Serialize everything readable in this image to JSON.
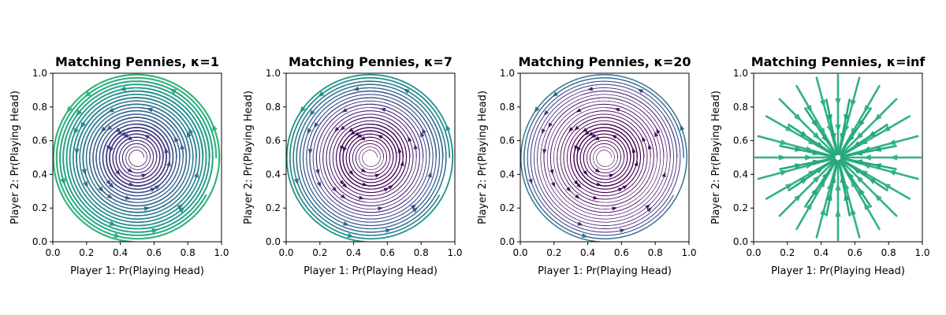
{
  "chart_data": [
    {
      "type": "streamplot",
      "title": "Matching Pennies, κ=1",
      "kappa": 1,
      "xlabel": "Player 1: Pr(Playing Head)",
      "ylabel": "Player 2: Pr(Playing Head)",
      "xlim": [
        0.0,
        1.0
      ],
      "ylim": [
        0.0,
        1.0
      ],
      "xticks": [
        "0.0",
        "0.2",
        "0.4",
        "0.6",
        "0.8",
        "1.0"
      ],
      "yticks": [
        "0.0",
        "0.2",
        "0.4",
        "0.6",
        "0.8",
        "1.0"
      ],
      "flow": "rotation",
      "center": [
        0.5,
        0.5
      ],
      "colormap": "viridis"
    },
    {
      "type": "streamplot",
      "title": "Matching Pennies, κ=7",
      "kappa": 7,
      "xlabel": "Player 1: Pr(Playing Head)",
      "ylabel": "Player 2: Pr(Playing Head)",
      "xlim": [
        0.0,
        1.0
      ],
      "ylim": [
        0.0,
        1.0
      ],
      "xticks": [
        "0.0",
        "0.2",
        "0.4",
        "0.6",
        "0.8",
        "1.0"
      ],
      "yticks": [
        "0.0",
        "0.2",
        "0.4",
        "0.6",
        "0.8",
        "1.0"
      ],
      "flow": "rotation",
      "center": [
        0.5,
        0.5
      ],
      "colormap": "viridis"
    },
    {
      "type": "streamplot",
      "title": "Matching Pennies, κ=20",
      "kappa": 20,
      "xlabel": "Player 1: Pr(Playing Head)",
      "ylabel": "Player 2: Pr(Playing Head)",
      "xlim": [
        0.0,
        1.0
      ],
      "ylim": [
        0.0,
        1.0
      ],
      "xticks": [
        "0.0",
        "0.2",
        "0.4",
        "0.6",
        "0.8",
        "1.0"
      ],
      "yticks": [
        "0.0",
        "0.2",
        "0.4",
        "0.6",
        "0.8",
        "1.0"
      ],
      "flow": "rotation",
      "center": [
        0.5,
        0.5
      ],
      "colormap": "viridis"
    },
    {
      "type": "streamplot",
      "title": "Matching Pennies, κ=inf",
      "kappa": "inf",
      "xlabel": "Player 1: Pr(Playing Head)",
      "ylabel": "Player 2: Pr(Playing Head)",
      "xlim": [
        0.0,
        1.0
      ],
      "ylim": [
        0.0,
        1.0
      ],
      "xticks": [
        "0.0",
        "0.2",
        "0.4",
        "0.6",
        "0.8",
        "1.0"
      ],
      "yticks": [
        "0.0",
        "0.2",
        "0.4",
        "0.6",
        "0.8",
        "1.0"
      ],
      "flow": "radial-inward",
      "center": [
        0.5,
        0.5
      ],
      "colormap": "viridis"
    }
  ]
}
